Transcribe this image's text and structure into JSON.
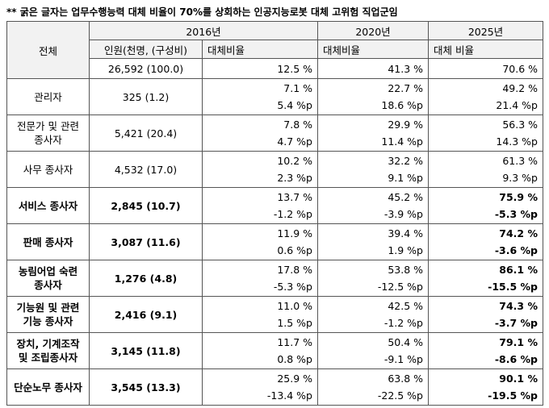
{
  "note": "** 굵은 글자는 업무수행능력 대체 비율이 70%를 상회하는 인공지능로봇 대체 고위험 직업군임",
  "table": {
    "corner": "전체",
    "years": [
      "2016년",
      "2020년",
      "2025년"
    ],
    "subheaders": [
      "인원(천명, (구성비)",
      "대체비율",
      "대체비율",
      "대체 비율"
    ],
    "total": {
      "population": "26,592 (100.0)",
      "rates": [
        "12.5 %",
        "41.3 %",
        "70.6 %"
      ]
    },
    "rows": [
      {
        "name": "관리자",
        "population": "325 (1.2)",
        "rates": [
          "7.1 %",
          "22.7 %",
          "49.2 %"
        ],
        "changes": [
          "5.4 %p",
          "18.6 %p",
          "21.4 %p"
        ],
        "highlight": false
      },
      {
        "name": "전문가 및 관련 종사자",
        "population": "5,421 (20.4)",
        "rates": [
          "7.8 %",
          "29.9 %",
          "56.3 %"
        ],
        "changes": [
          "4.7 %p",
          "11.4 %p",
          "14.3 %p"
        ],
        "highlight": false
      },
      {
        "name": "사무 종사자",
        "population": "4,532 (17.0)",
        "rates": [
          "10.2 %",
          "32.2 %",
          "61.3 %"
        ],
        "changes": [
          "2.3 %p",
          "9.1 %p",
          "9.3 %p"
        ],
        "highlight": false
      },
      {
        "name": "서비스 종사자",
        "population": "2,845 (10.7)",
        "rates": [
          "13.7 %",
          "45.2 %",
          "75.9 %"
        ],
        "changes": [
          "-1.2 %p",
          "-3.9 %p",
          "-5.3 %p"
        ],
        "highlight": true
      },
      {
        "name": "판매 종사자",
        "population": "3,087 (11.6)",
        "rates": [
          "11.9 %",
          "39.4 %",
          "74.2 %"
        ],
        "changes": [
          "0.6 %p",
          "1.9 %p",
          "-3.6 %p"
        ],
        "highlight": true
      },
      {
        "name": "농림어업 숙련 종사자",
        "population": "1,276 (4.8)",
        "rates": [
          "17.8 %",
          "53.8 %",
          "86.1 %"
        ],
        "changes": [
          "-5.3 %p",
          "-12.5 %p",
          "-15.5 %p"
        ],
        "highlight": true
      },
      {
        "name": "기능원 및 관련 기능 종사자",
        "population": "2,416 (9.1)",
        "rates": [
          "11.0 %",
          "42.5 %",
          "74.3 %"
        ],
        "changes": [
          "1.5 %p",
          "-1.2 %p",
          "-3.7 %p"
        ],
        "highlight": true
      },
      {
        "name": "장치, 기계조작 및 조립종사자",
        "population": "3,145 (11.8)",
        "rates": [
          "11.7 %",
          "50.4 %",
          "79.1 %"
        ],
        "changes": [
          "0.8 %p",
          "-9.1 %p",
          "-8.6 %p"
        ],
        "highlight": true
      },
      {
        "name": "단순노무 종사자",
        "population": "3,545 (13.3)",
        "rates": [
          "25.9 %",
          "63.8 %",
          "90.1 %"
        ],
        "changes": [
          "-13.4 %p",
          "-22.5 %p",
          "-19.5 %p"
        ],
        "highlight": true
      }
    ]
  }
}
